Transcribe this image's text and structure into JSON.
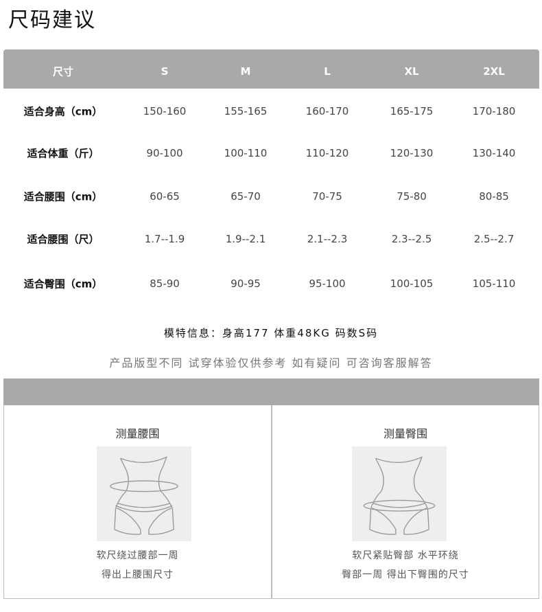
{
  "title": "尺码建议",
  "table": {
    "headers": [
      "尺寸",
      "S",
      "M",
      "L",
      "XL",
      "2XL"
    ],
    "rows": [
      {
        "label": "适合身高（cm）",
        "values": [
          "150-160",
          "155-165",
          "160-170",
          "165-175",
          "170-180"
        ]
      },
      {
        "label": "适合体重（斤）",
        "values": [
          "90-100",
          "100-110",
          "110-120",
          "120-130",
          "130-140"
        ]
      },
      {
        "label": "适合腰围（cm）",
        "values": [
          "60-65",
          "65-70",
          "70-75",
          "75-80",
          "80-85"
        ]
      },
      {
        "label": "适合腰围（尺）",
        "values": [
          "1.7--1.9",
          "1.9--2.1",
          "2.1--2.3",
          "2.3--2.5",
          "2.5--2.7"
        ]
      },
      {
        "label": "适合臀围（cm）",
        "values": [
          "85-90",
          "90-95",
          "95-100",
          "100-105",
          "105-110"
        ]
      }
    ]
  },
  "model_info": "模特信息：身高177   体重48KG   码数S码",
  "note": "产品版型不同 试穿体验仅供参考  如有疑问  可咨询客服解答",
  "measure": [
    {
      "title": "测量腰围",
      "lines": [
        "软尺绕过腰部一周",
        "得出上腰围尺寸"
      ]
    },
    {
      "title": "测量臀围",
      "lines": [
        "软尺紧贴臀部 水平环绕",
        "臀部一周 得出下臀围的尺寸"
      ]
    }
  ]
}
